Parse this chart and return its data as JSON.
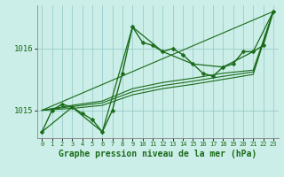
{
  "background_color": "#cceee8",
  "grid_color": "#99cccc",
  "line_color": "#1a6b1a",
  "marker_color": "#1a6b1a",
  "xlabel": "Graphe pression niveau de la mer (hPa)",
  "xlabel_fontsize": 7,
  "xlabel_bold": true,
  "xlim": [
    -0.5,
    23.5
  ],
  "ylim": [
    1014.55,
    1016.7
  ],
  "yticks": [
    1015,
    1016
  ],
  "xticks": [
    0,
    1,
    2,
    3,
    4,
    5,
    6,
    7,
    8,
    9,
    10,
    11,
    12,
    13,
    14,
    15,
    16,
    17,
    18,
    19,
    20,
    21,
    22,
    23
  ],
  "series": [
    {
      "x": [
        0,
        1,
        2,
        3,
        4,
        5,
        6,
        7,
        8,
        9,
        10,
        11,
        12,
        13,
        14,
        15,
        16,
        17,
        18,
        19,
        20,
        21,
        22,
        23
      ],
      "y": [
        1014.65,
        1015.0,
        1015.1,
        1015.05,
        1014.95,
        1014.85,
        1014.65,
        1015.0,
        1015.6,
        1016.35,
        1016.1,
        1016.05,
        1015.95,
        1016.0,
        1015.9,
        1015.75,
        1015.6,
        1015.55,
        1015.7,
        1015.75,
        1015.95,
        1015.95,
        1016.05,
        1016.6
      ],
      "has_markers": true,
      "linewidth": 1.0,
      "markersize": 2.5
    },
    {
      "x": [
        0,
        3,
        6,
        9,
        12,
        15,
        18,
        21,
        23
      ],
      "y": [
        1014.65,
        1015.05,
        1014.65,
        1016.35,
        1015.95,
        1015.75,
        1015.7,
        1015.95,
        1016.6
      ],
      "has_markers": true,
      "linewidth": 0.9,
      "markersize": 2.0
    },
    {
      "x": [
        0,
        23
      ],
      "y": [
        1015.0,
        1016.6
      ],
      "has_markers": false,
      "linewidth": 0.8,
      "markersize": 0
    },
    {
      "x": [
        0,
        3,
        6,
        9,
        12,
        15,
        18,
        21,
        23
      ],
      "y": [
        1015.0,
        1015.08,
        1015.15,
        1015.35,
        1015.45,
        1015.52,
        1015.6,
        1015.65,
        1016.6
      ],
      "has_markers": false,
      "linewidth": 0.8,
      "markersize": 0
    },
    {
      "x": [
        0,
        3,
        6,
        9,
        12,
        15,
        18,
        21,
        23
      ],
      "y": [
        1015.0,
        1015.06,
        1015.12,
        1015.3,
        1015.4,
        1015.47,
        1015.55,
        1015.62,
        1016.6
      ],
      "has_markers": false,
      "linewidth": 0.8,
      "markersize": 0
    },
    {
      "x": [
        0,
        3,
        6,
        9,
        12,
        15,
        18,
        21,
        23
      ],
      "y": [
        1015.0,
        1015.03,
        1015.08,
        1015.25,
        1015.35,
        1015.42,
        1015.5,
        1015.58,
        1016.6
      ],
      "has_markers": false,
      "linewidth": 0.8,
      "markersize": 0
    }
  ]
}
